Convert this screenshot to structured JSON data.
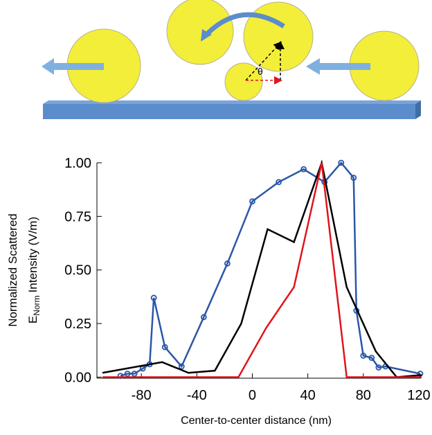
{
  "diagram": {
    "angle_label": "θ"
  },
  "chart_data": {
    "type": "line",
    "xlabel": "Center-to-center distance (nm)",
    "ylabel": {
      "line1": "Normalized Scattered",
      "symbol": "E",
      "subscript": "Norm",
      "rest": "Intensity (V/m)"
    },
    "xlim": [
      -112,
      123
    ],
    "ylim": [
      -0.005,
      1.0
    ],
    "xticks": [
      -80,
      -40,
      0,
      40,
      80,
      120
    ],
    "yticks": [
      {
        "value": 0,
        "label": "0.00"
      },
      {
        "value": 0.25,
        "label": "0.25"
      },
      {
        "value": 0.5,
        "label": "0.50"
      },
      {
        "value": 0.75,
        "label": "0.75"
      },
      {
        "value": 1,
        "label": "1.00"
      }
    ],
    "series": [
      {
        "color": "#2a56a8",
        "markers": true,
        "x": [
          -95,
          -90,
          -85,
          -79,
          -74,
          -71,
          -63,
          -51,
          -35,
          -18,
          0,
          19,
          37,
          52,
          64,
          73,
          75,
          80,
          86,
          91,
          96,
          121
        ],
        "values": [
          0.006,
          0.016,
          0.016,
          0.04,
          0.06,
          0.37,
          0.14,
          0.05,
          0.28,
          0.53,
          0.82,
          0.91,
          0.97,
          0.91,
          1.0,
          0.93,
          0.31,
          0.1,
          0.09,
          0.045,
          0.05,
          0.016
        ]
      },
      {
        "color": "#000000",
        "markers": false,
        "x": [
          -108,
          -65,
          -46,
          -27,
          -8,
          11,
          30,
          50,
          68,
          89,
          104,
          122
        ],
        "values": [
          0.02,
          0.07,
          0.02,
          0.03,
          0.25,
          0.69,
          0.63,
          1.0,
          0.42,
          0.12,
          0,
          0.01
        ]
      },
      {
        "color": "#e0141c",
        "markers": false,
        "x": [
          -108,
          -10,
          10,
          30,
          50,
          68,
          122
        ],
        "values": [
          0,
          0,
          0.23,
          0.42,
          1.0,
          0,
          0
        ]
      }
    ]
  }
}
